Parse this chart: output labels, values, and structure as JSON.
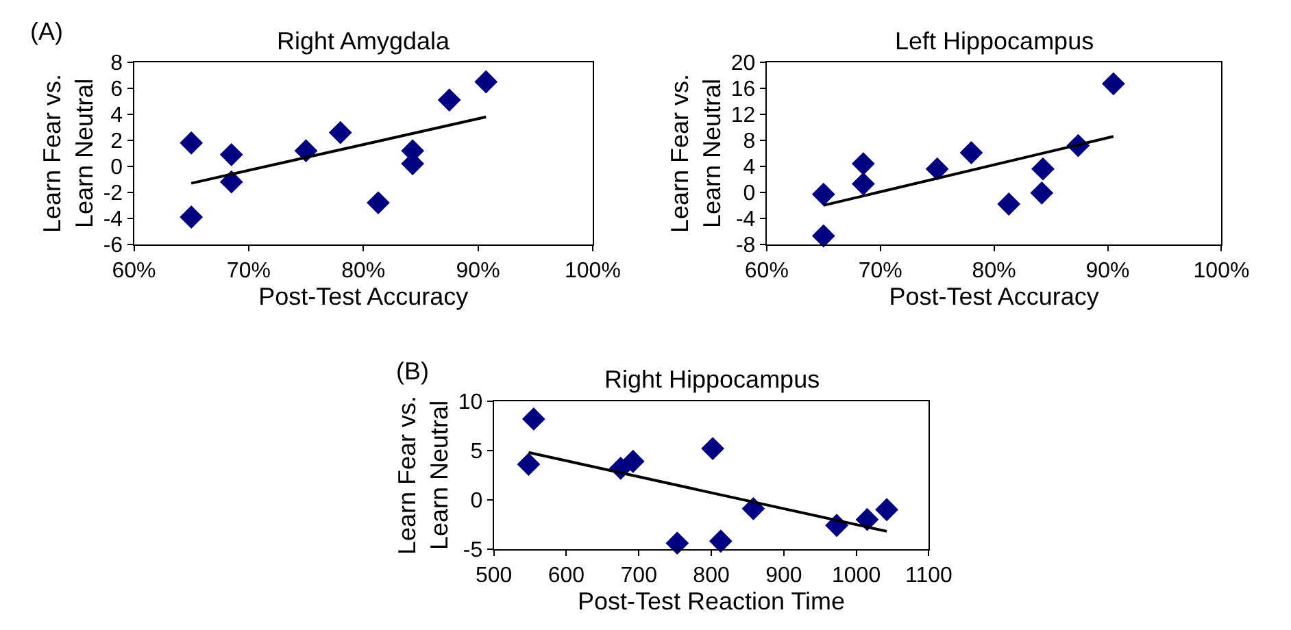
{
  "chart_data": [
    {
      "type": "scatter",
      "title": "Right Amygdala",
      "xlabel": "Post-Test Accuracy",
      "ylabel": "Learn Fear vs.\nLearn Neutral",
      "annotations": [
        "(A)"
      ],
      "xlim": [
        60,
        100
      ],
      "xticks": [
        {
          "value": 60,
          "label": "60%"
        },
        {
          "value": 70,
          "label": "70%"
        },
        {
          "value": 80,
          "label": "80%"
        },
        {
          "value": 90,
          "label": "90%"
        },
        {
          "value": 100,
          "label": "100%"
        }
      ],
      "ylim": [
        -6,
        8
      ],
      "yticks": [
        -6,
        -4,
        -2,
        0,
        2,
        4,
        6,
        8
      ],
      "series": [
        {
          "marker": "diamond",
          "color": "#000080",
          "x": [
            65,
            65,
            68.5,
            68.5,
            75,
            78,
            81.3,
            84.3,
            84.3,
            87.5,
            90.7
          ],
          "values": [
            1.8,
            -3.9,
            0.9,
            -1.2,
            1.2,
            2.6,
            -2.8,
            1.2,
            0.2,
            5.1,
            6.5
          ]
        },
        {
          "type": "line",
          "marker": "none",
          "color": "#000000",
          "x": [
            65,
            90.7
          ],
          "values": [
            -1.3,
            3.8
          ]
        }
      ]
    },
    {
      "type": "scatter",
      "title": "Left Hippocampus",
      "xlabel": "Post-Test Accuracy",
      "ylabel": "Learn Fear vs.\nLearn Neutral",
      "xlim": [
        60,
        100
      ],
      "xticks": [
        {
          "value": 60,
          "label": "60%"
        },
        {
          "value": 70,
          "label": "70%"
        },
        {
          "value": 80,
          "label": "80%"
        },
        {
          "value": 90,
          "label": "90%"
        },
        {
          "value": 100,
          "label": "100%"
        }
      ],
      "ylim": [
        -8,
        20
      ],
      "yticks": [
        -8,
        -4,
        0,
        4,
        8,
        12,
        16,
        20
      ],
      "series": [
        {
          "marker": "diamond",
          "color": "#000080",
          "x": [
            65,
            65,
            68.5,
            68.5,
            75,
            78,
            81.3,
            84.3,
            84.2,
            87.4,
            90.5
          ],
          "values": [
            -0.3,
            -6.7,
            4.4,
            1.3,
            3.6,
            6.1,
            -1.8,
            3.6,
            -0.1,
            7.2,
            16.7
          ]
        },
        {
          "type": "line",
          "marker": "none",
          "color": "#000000",
          "x": [
            65,
            90.5
          ],
          "values": [
            -2,
            8.6
          ]
        }
      ]
    },
    {
      "type": "scatter",
      "title": "Right Hippocampus",
      "xlabel": "Post-Test Reaction Time",
      "ylabel": "Learn Fear vs.\nLearn Neutral",
      "annotations": [
        "(B)"
      ],
      "xlim": [
        500,
        1100
      ],
      "xticks": [
        500,
        600,
        700,
        800,
        900,
        1000,
        1100
      ],
      "ylim": [
        -5,
        10
      ],
      "yticks": [
        -5,
        0,
        5,
        10
      ],
      "series": [
        {
          "marker": "diamond",
          "color": "#000080",
          "x": [
            548,
            555,
            675,
            692,
            753,
            802,
            813,
            858,
            973,
            1015,
            1042
          ],
          "values": [
            3.6,
            8.2,
            3.2,
            3.9,
            -4.4,
            5.2,
            -4.2,
            -0.9,
            -2.6,
            -2,
            -1
          ]
        },
        {
          "type": "line",
          "marker": "none",
          "color": "#000000",
          "x": [
            548,
            1042
          ],
          "values": [
            4.8,
            -3.2
          ]
        }
      ]
    }
  ]
}
